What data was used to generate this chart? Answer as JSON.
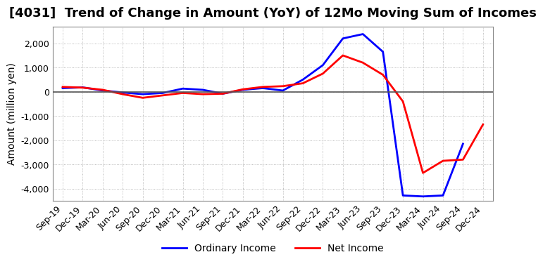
{
  "title": "[4031]  Trend of Change in Amount (YoY) of 12Mo Moving Sum of Incomes",
  "ylabel": "Amount (million yen)",
  "x_labels": [
    "Sep-19",
    "Dec-19",
    "Mar-20",
    "Jun-20",
    "Sep-20",
    "Dec-20",
    "Mar-21",
    "Jun-21",
    "Sep-21",
    "Dec-21",
    "Mar-22",
    "Jun-22",
    "Sep-22",
    "Dec-22",
    "Mar-23",
    "Jun-23",
    "Sep-23",
    "Dec-23",
    "Mar-24",
    "Jun-24",
    "Sep-24",
    "Dec-24"
  ],
  "ordinary_income": [
    150,
    180,
    50,
    -30,
    -100,
    -50,
    130,
    80,
    -80,
    80,
    150,
    50,
    500,
    1100,
    2200,
    2380,
    1650,
    -4280,
    -4320,
    -4280,
    -2150,
    null
  ],
  "net_income": [
    200,
    170,
    80,
    -100,
    -250,
    -150,
    -50,
    -100,
    -80,
    100,
    200,
    230,
    350,
    750,
    1500,
    1200,
    700,
    -400,
    -3350,
    -2850,
    -2800,
    -1350
  ],
  "ylim": [
    -4500,
    2700
  ],
  "yticks": [
    -4000,
    -3000,
    -2000,
    -1000,
    0,
    1000,
    2000
  ],
  "ordinary_color": "#0000FF",
  "net_color": "#FF0000",
  "legend_labels": [
    "Ordinary Income",
    "Net Income"
  ],
  "grid_color": "#AAAAAA",
  "title_fontsize": 13,
  "tick_fontsize": 9,
  "label_fontsize": 10
}
